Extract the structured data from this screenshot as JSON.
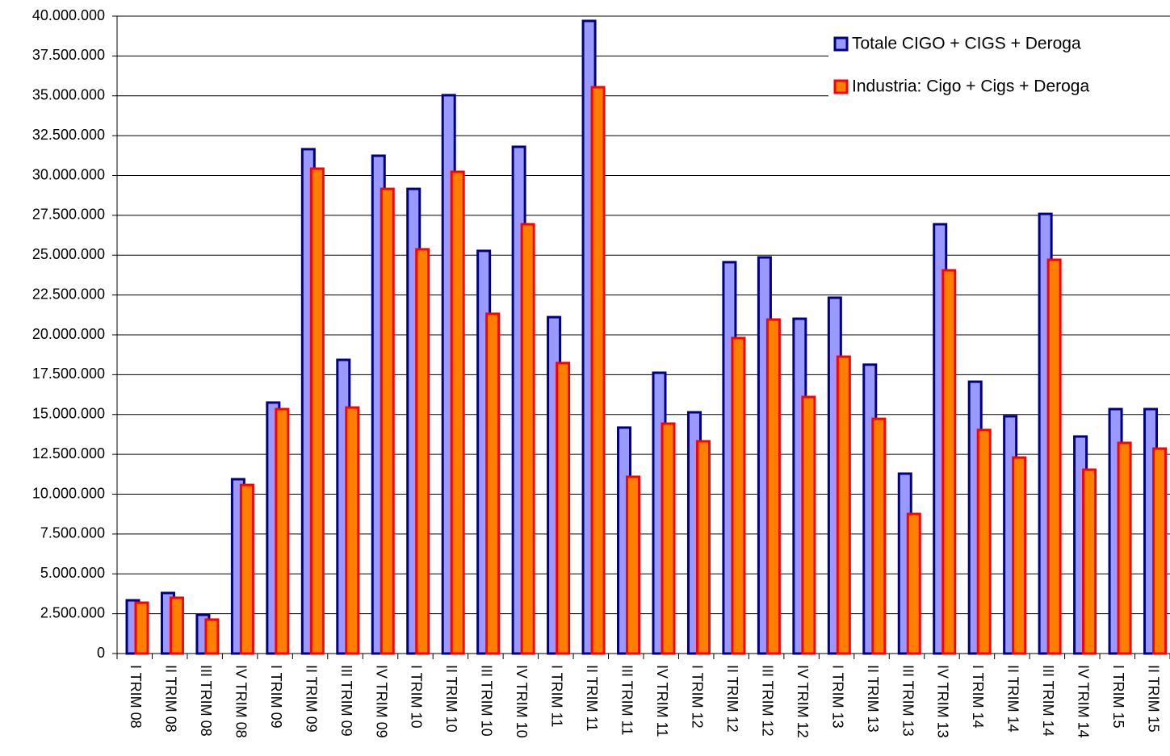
{
  "chart_data": {
    "type": "bar",
    "categories": [
      "I TRIM 08",
      "II TRIM 08",
      "III TRIM 08",
      "IV TRIM 08",
      "I TRIM 09",
      "II TRIM 09",
      "III TRIM 09",
      "IV TRIM 09",
      "I TRIM 10",
      "II TRIM 10",
      "III TRIM 10",
      "IV TRIM 10",
      "I TRIM 11",
      "II TRIM 11",
      "III TRIM 11",
      "IV TRIM 11",
      "I TRIM 12",
      "II TRIM 12",
      "III TRIM 12",
      "IV TRIM 12",
      "I TRIM 13",
      "II TRIM 13",
      "III TRIM 13",
      "IV TRIM 13",
      "I TRIM 14",
      "II TRIM 14",
      "III TRIM 14",
      "IV TRIM 14",
      "I TRIM 15",
      "II TRIM 15"
    ],
    "series": [
      {
        "name": "Totale CIGO + CIGS + Deroga",
        "color": "#9999ff",
        "border": "#000080",
        "values": [
          3340000,
          3800000,
          2430000,
          10940000,
          15750000,
          31650000,
          18430000,
          31240000,
          29160000,
          35040000,
          25270000,
          31800000,
          21110000,
          39700000,
          14180000,
          17620000,
          15140000,
          24560000,
          24860000,
          21010000,
          22330000,
          18130000,
          11290000,
          26940000,
          17060000,
          14890000,
          27590000,
          13620000,
          15340000,
          15340000
        ]
      },
      {
        "name": "Industria: Cigo + Cigs + Deroga",
        "color": "#ff8000",
        "border": "#ff0000",
        "values": [
          3190000,
          3500000,
          2130000,
          10580000,
          15340000,
          30430000,
          15440000,
          29160000,
          25370000,
          30230000,
          21320000,
          26940000,
          18230000,
          35540000,
          11090000,
          14430000,
          13320000,
          19800000,
          20960000,
          16100000,
          18630000,
          14730000,
          8760000,
          24050000,
          14030000,
          12300000,
          24710000,
          11540000,
          13220000,
          12860000
        ]
      }
    ],
    "ylim": [
      0,
      40000000
    ],
    "yticks": [
      0,
      {
        "value": 2500000,
        "label": "2.500.000"
      },
      {
        "value": 5000000,
        "label": "5.000.000"
      },
      {
        "value": 7500000,
        "label": "7.500.000"
      },
      {
        "value": 10000000,
        "label": "10.000.000"
      },
      {
        "value": 12500000,
        "label": "12.500.000"
      },
      {
        "value": 15000000,
        "label": "15.000.000"
      },
      {
        "value": 17500000,
        "label": "17.500.000"
      },
      {
        "value": 20000000,
        "label": "20.000.000"
      },
      {
        "value": 22500000,
        "label": "22.500.000"
      },
      {
        "value": 25000000,
        "label": "25.000.000"
      },
      {
        "value": 27500000,
        "label": "27.500.000"
      },
      {
        "value": 30000000,
        "label": "30.000.000"
      },
      {
        "value": 32500000,
        "label": "32.500.000"
      },
      {
        "value": 35000000,
        "label": "35.000.000"
      },
      {
        "value": 37500000,
        "label": "37.500.000"
      },
      {
        "value": 40000000,
        "label": "40.000.000"
      }
    ],
    "grid": true,
    "legend": "top-right"
  }
}
